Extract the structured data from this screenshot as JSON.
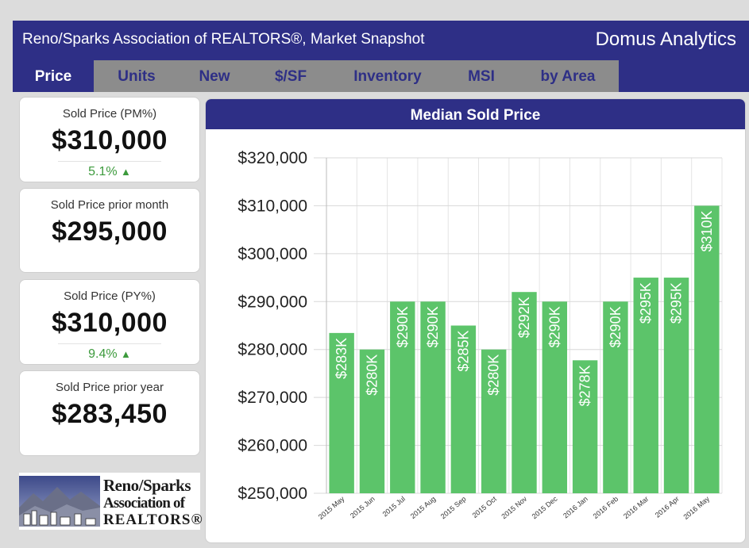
{
  "header": {
    "title": "Reno/Sparks Association of REALTORS®, Market Snapshot",
    "brand": "Domus Analytics"
  },
  "tabs": [
    {
      "label": "Price",
      "active": true
    },
    {
      "label": "Units"
    },
    {
      "label": "New"
    },
    {
      "label": "$/SF"
    },
    {
      "label": "Inventory"
    },
    {
      "label": "MSI"
    },
    {
      "label": "by Area"
    }
  ],
  "cards": [
    {
      "label": "Sold Price (PM%)",
      "value": "$310,000",
      "change": "5.1%",
      "direction": "up"
    },
    {
      "label": "Sold Price prior month",
      "value": "$295,000"
    },
    {
      "label": "Sold Price (PY%)",
      "value": "$310,000",
      "change": "9.4%",
      "direction": "up"
    },
    {
      "label": "Sold Price prior year",
      "value": "$283,450"
    }
  ],
  "logo": {
    "line1": "Reno/Sparks",
    "line2": "Association of",
    "line3": "REALTORS®"
  },
  "colors": {
    "navy": "#2e2f86",
    "tab_bg": "#8c8c8c",
    "bar_green": "#5cc46a",
    "up_green": "#3c9a3c"
  },
  "chart_data": {
    "type": "bar",
    "title": "Median Sold Price",
    "categories": [
      "2015 May",
      "2015 Jun",
      "2015 Jul",
      "2015 Aug",
      "2015 Sep",
      "2015 Oct",
      "2015 Nov",
      "2015 Dec",
      "2016 Jan",
      "2016 Feb",
      "2016 Mar",
      "2016 Apr",
      "2016 May"
    ],
    "values": [
      283450,
      280000,
      290000,
      290000,
      285000,
      280000,
      292000,
      290000,
      277750,
      290000,
      295000,
      295000,
      310000
    ],
    "labels": [
      "$283K",
      "$280K",
      "$290K",
      "$290K",
      "$285K",
      "$280K",
      "$292K",
      "$290K",
      "$278K",
      "$290K",
      "$295K",
      "$295K",
      "$310K"
    ],
    "yticks": [
      "$250,000",
      "$260,000",
      "$270,000",
      "$280,000",
      "$290,000",
      "$300,000",
      "$310,000",
      "$320,000"
    ],
    "ylim": [
      250000,
      320000
    ],
    "grid": true
  }
}
